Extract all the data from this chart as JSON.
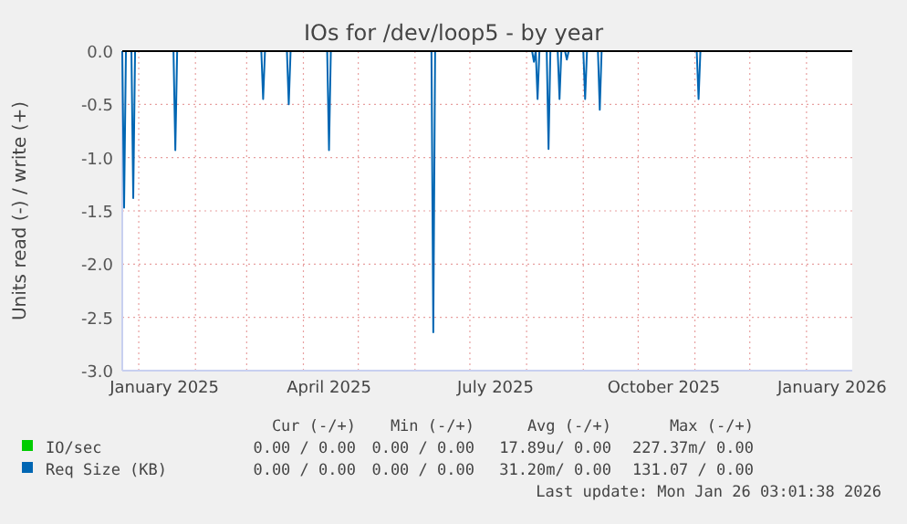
{
  "chart_data": {
    "type": "line",
    "title": "IOs for /dev/loop5 - by year",
    "ylabel": "Units read (-) / write (+)",
    "xlim": [
      "2024-12-23",
      "2026-01-26"
    ],
    "xticks": [
      {
        "value": "2025-01-01",
        "label": null
      },
      {
        "value": "2025-01-15",
        "label": "January 2025"
      },
      {
        "value": "2025-02-01",
        "label": null
      },
      {
        "value": "2025-03-01",
        "label": null
      },
      {
        "value": "2025-04-01",
        "label": null
      },
      {
        "value": "2025-04-15",
        "label": "April 2025"
      },
      {
        "value": "2025-05-01",
        "label": null
      },
      {
        "value": "2025-06-01",
        "label": null
      },
      {
        "value": "2025-07-01",
        "label": null
      },
      {
        "value": "2025-07-15",
        "label": "July 2025"
      },
      {
        "value": "2025-08-01",
        "label": null
      },
      {
        "value": "2025-09-01",
        "label": null
      },
      {
        "value": "2025-10-01",
        "label": null
      },
      {
        "value": "2025-10-15",
        "label": "October 2025"
      },
      {
        "value": "2025-11-01",
        "label": null
      },
      {
        "value": "2025-12-01",
        "label": null
      },
      {
        "value": "2026-01-01",
        "label": null
      },
      {
        "value": "2026-01-15",
        "label": "January 2026"
      }
    ],
    "ylim": [
      -3,
      0
    ],
    "yticks": [
      {
        "value": -3,
        "label": "-3.0"
      },
      {
        "value": -2.5,
        "label": "-2.5"
      },
      {
        "value": -2,
        "label": "-2.0"
      },
      {
        "value": -1.5,
        "label": "-1.5"
      },
      {
        "value": -1,
        "label": "-1.0"
      },
      {
        "value": -0.5,
        "label": "-0.5"
      },
      {
        "value": 0,
        "label": "0.0"
      }
    ],
    "grid": true,
    "legend": "bottom",
    "series": [
      {
        "name": "IO/sec",
        "color": "#00cc00"
      },
      {
        "name": "Req Size (KB)",
        "color": "#0066b3",
        "x": [
          "2024-12-23",
          "2024-12-24",
          "2024-12-25",
          "2024-12-28",
          "2024-12-29",
          "2024-12-30",
          "2025-01-20",
          "2025-01-21",
          "2025-01-22",
          "2025-03-09",
          "2025-03-10",
          "2025-03-11",
          "2025-03-23",
          "2025-03-24",
          "2025-03-25",
          "2025-04-14",
          "2025-04-15",
          "2025-04-16",
          "2025-06-10",
          "2025-06-11",
          "2025-06-12",
          "2025-08-04",
          "2025-08-05",
          "2025-08-06",
          "2025-08-07",
          "2025-08-08",
          "2025-08-12",
          "2025-08-13",
          "2025-08-14",
          "2025-08-18",
          "2025-08-19",
          "2025-08-20",
          "2025-08-22",
          "2025-08-23",
          "2025-08-24",
          "2025-09-01",
          "2025-09-02",
          "2025-09-03",
          "2025-09-09",
          "2025-09-10",
          "2025-09-11",
          "2025-11-02",
          "2025-11-03",
          "2025-11-04",
          "2026-01-26"
        ],
        "values": [
          0,
          -1.47,
          0,
          0,
          -1.38,
          0,
          0,
          -0.93,
          0,
          0,
          -0.45,
          0,
          0,
          -0.5,
          0,
          0,
          -0.93,
          0,
          0,
          -2.64,
          0,
          0,
          -0.1,
          0,
          -0.45,
          0,
          0,
          -0.92,
          0,
          0,
          -0.45,
          0,
          0,
          -0.08,
          0,
          0,
          -0.45,
          0,
          0,
          -0.55,
          0,
          0,
          -0.45,
          0,
          0
        ]
      }
    ],
    "annotations": [
      "Cur (-/+)",
      "Min (-/+)",
      "Avg (-/+)",
      "Max (-/+)",
      "0.00 / 0.00",
      "0.00 / 0.00",
      "17.89u/ 0.00",
      "227.37m/ 0.00",
      "0.00 / 0.00",
      "0.00 / 0.00",
      "31.20m/ 0.00",
      "131.07 / 0.00",
      "Last update: Mon Jan 26 03:01:38 2026"
    ]
  }
}
